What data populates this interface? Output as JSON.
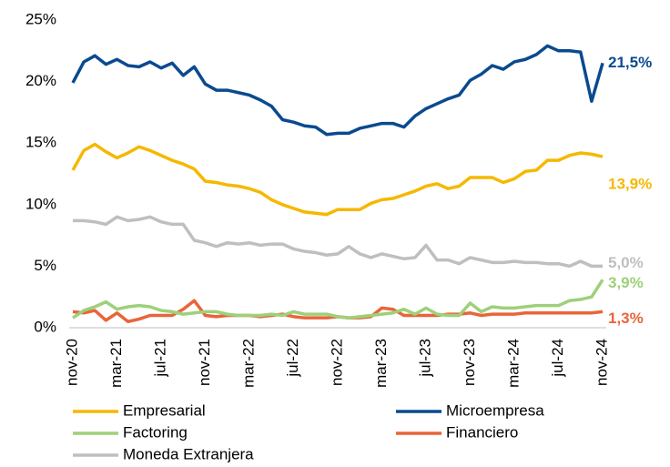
{
  "chart_data": {
    "type": "line",
    "categories": [
      "nov-20",
      null,
      null,
      null,
      "mar-21",
      null,
      null,
      null,
      "jul-21",
      null,
      null,
      null,
      "nov-21",
      null,
      null,
      null,
      "mar-22",
      null,
      null,
      null,
      "jul-22",
      null,
      null,
      null,
      "nov-22",
      null,
      null,
      null,
      "mar-23",
      null,
      null,
      null,
      "jul-23",
      null,
      null,
      null,
      "nov-23",
      null,
      null,
      null,
      "mar-24",
      null,
      null,
      null,
      "jul-24",
      null,
      null,
      null,
      "nov-24"
    ],
    "series": [
      {
        "name": "Empresarial",
        "color": "#F5B800",
        "values": [
          12.8,
          14.4,
          14.9,
          14.3,
          13.8,
          14.2,
          14.7,
          14.4,
          14.0,
          13.6,
          13.3,
          12.9,
          11.9,
          11.8,
          11.6,
          11.5,
          11.3,
          11.0,
          10.4,
          10.0,
          9.7,
          9.4,
          9.3,
          9.2,
          9.6,
          9.6,
          9.6,
          10.1,
          10.4,
          10.5,
          10.8,
          11.1,
          11.5,
          11.7,
          11.3,
          11.5,
          12.2,
          12.2,
          12.2,
          11.8,
          12.1,
          12.7,
          12.8,
          13.6,
          13.6,
          14.0,
          14.2,
          14.1,
          13.9
        ],
        "value_labels": [
          null,
          null,
          null,
          null,
          null,
          null,
          null,
          null,
          null,
          null,
          null,
          null,
          null,
          null,
          null,
          null,
          null,
          null,
          null,
          null,
          null,
          null,
          null,
          null,
          null,
          null,
          null,
          null,
          null,
          null,
          null,
          null,
          null,
          null,
          null,
          null,
          null,
          null,
          null,
          null,
          null,
          null,
          null,
          null,
          null,
          null,
          null,
          null,
          "13,9%"
        ]
      },
      {
        "name": "Microempresa",
        "color": "#0A4A8F",
        "values": [
          19.9,
          21.6,
          22.1,
          21.4,
          21.8,
          21.3,
          21.2,
          21.6,
          21.1,
          21.5,
          20.5,
          21.2,
          19.8,
          19.3,
          19.3,
          19.1,
          18.9,
          18.5,
          18.0,
          16.9,
          16.7,
          16.4,
          16.3,
          15.7,
          15.8,
          15.8,
          16.2,
          16.4,
          16.6,
          16.6,
          16.3,
          17.2,
          17.8,
          18.2,
          18.6,
          18.9,
          20.1,
          20.6,
          21.3,
          21.0,
          21.6,
          21.8,
          22.2,
          22.9,
          22.5,
          22.5,
          22.4,
          18.4,
          21.5
        ],
        "value_labels": [
          null,
          null,
          null,
          null,
          null,
          null,
          null,
          null,
          null,
          null,
          null,
          null,
          null,
          null,
          null,
          null,
          null,
          null,
          null,
          null,
          null,
          null,
          null,
          null,
          null,
          null,
          null,
          null,
          null,
          null,
          null,
          null,
          null,
          null,
          null,
          null,
          null,
          null,
          null,
          null,
          null,
          null,
          null,
          null,
          null,
          null,
          null,
          null,
          "21,5%"
        ]
      },
      {
        "name": "Factoring",
        "color": "#9ED07A",
        "values": [
          0.8,
          1.4,
          1.7,
          2.1,
          1.5,
          1.7,
          1.8,
          1.7,
          1.4,
          1.3,
          1.1,
          1.2,
          1.3,
          1.3,
          1.1,
          1.0,
          1.0,
          1.0,
          1.1,
          1.0,
          1.3,
          1.1,
          1.1,
          1.1,
          0.9,
          0.8,
          0.9,
          1.0,
          1.1,
          1.2,
          1.5,
          1.1,
          1.6,
          1.1,
          1.0,
          1.0,
          2.0,
          1.3,
          1.7,
          1.6,
          1.6,
          1.7,
          1.8,
          1.8,
          1.8,
          2.2,
          2.3,
          2.5,
          3.9
        ],
        "value_labels": [
          null,
          null,
          null,
          null,
          null,
          null,
          null,
          null,
          null,
          null,
          null,
          null,
          null,
          null,
          null,
          null,
          null,
          null,
          null,
          null,
          null,
          null,
          null,
          null,
          null,
          null,
          null,
          null,
          null,
          null,
          null,
          null,
          null,
          null,
          null,
          null,
          null,
          null,
          null,
          null,
          null,
          null,
          null,
          null,
          null,
          null,
          null,
          null,
          "3,9%"
        ]
      },
      {
        "name": "Financiero",
        "color": "#E8653A",
        "values": [
          1.3,
          1.2,
          1.4,
          0.6,
          1.2,
          0.5,
          0.7,
          1.0,
          1.0,
          1.0,
          1.5,
          2.2,
          1.0,
          0.9,
          1.0,
          1.0,
          1.0,
          0.9,
          1.0,
          1.1,
          0.9,
          0.8,
          0.8,
          0.8,
          0.9,
          0.8,
          0.8,
          0.9,
          1.6,
          1.5,
          1.0,
          1.0,
          1.0,
          1.0,
          1.1,
          1.1,
          1.2,
          1.0,
          1.1,
          1.1,
          1.1,
          1.2,
          1.2,
          1.2,
          1.2,
          1.2,
          1.2,
          1.2,
          1.3
        ],
        "value_labels": [
          null,
          null,
          null,
          null,
          null,
          null,
          null,
          null,
          null,
          null,
          null,
          null,
          null,
          null,
          null,
          null,
          null,
          null,
          null,
          null,
          null,
          null,
          null,
          null,
          null,
          null,
          null,
          null,
          null,
          null,
          null,
          null,
          null,
          null,
          null,
          null,
          null,
          null,
          null,
          null,
          null,
          null,
          null,
          null,
          null,
          null,
          null,
          null,
          "1,3%"
        ]
      },
      {
        "name": "Moneda Extranjera",
        "color": "#BFBFBF",
        "values": [
          8.7,
          8.7,
          8.6,
          8.4,
          9.0,
          8.7,
          8.8,
          9.0,
          8.6,
          8.4,
          8.4,
          7.1,
          6.9,
          6.6,
          6.9,
          6.8,
          6.9,
          6.7,
          6.8,
          6.8,
          6.4,
          6.2,
          6.1,
          5.9,
          6.0,
          6.6,
          6.0,
          5.7,
          6.0,
          5.8,
          5.6,
          5.7,
          6.7,
          5.5,
          5.5,
          5.2,
          5.7,
          5.5,
          5.3,
          5.3,
          5.4,
          5.3,
          5.3,
          5.2,
          5.2,
          5.0,
          5.4,
          5.0,
          5.0
        ],
        "value_labels": [
          null,
          null,
          null,
          null,
          null,
          null,
          null,
          null,
          null,
          null,
          null,
          null,
          null,
          null,
          null,
          null,
          null,
          null,
          null,
          null,
          null,
          null,
          null,
          null,
          null,
          null,
          null,
          null,
          null,
          null,
          null,
          null,
          null,
          null,
          null,
          null,
          null,
          null,
          null,
          null,
          null,
          null,
          null,
          null,
          null,
          null,
          null,
          null,
          "5,0%"
        ]
      }
    ],
    "ylim": [
      0,
      25
    ],
    "yticks": [
      {
        "value": 0,
        "label": "0%"
      },
      {
        "value": 5,
        "label": "5%"
      },
      {
        "value": 10,
        "label": "10%"
      },
      {
        "value": 15,
        "label": "15%"
      },
      {
        "value": 20,
        "label": "20%"
      },
      {
        "value": 25,
        "label": "25%"
      }
    ],
    "grid": false,
    "legend": "bottom"
  }
}
